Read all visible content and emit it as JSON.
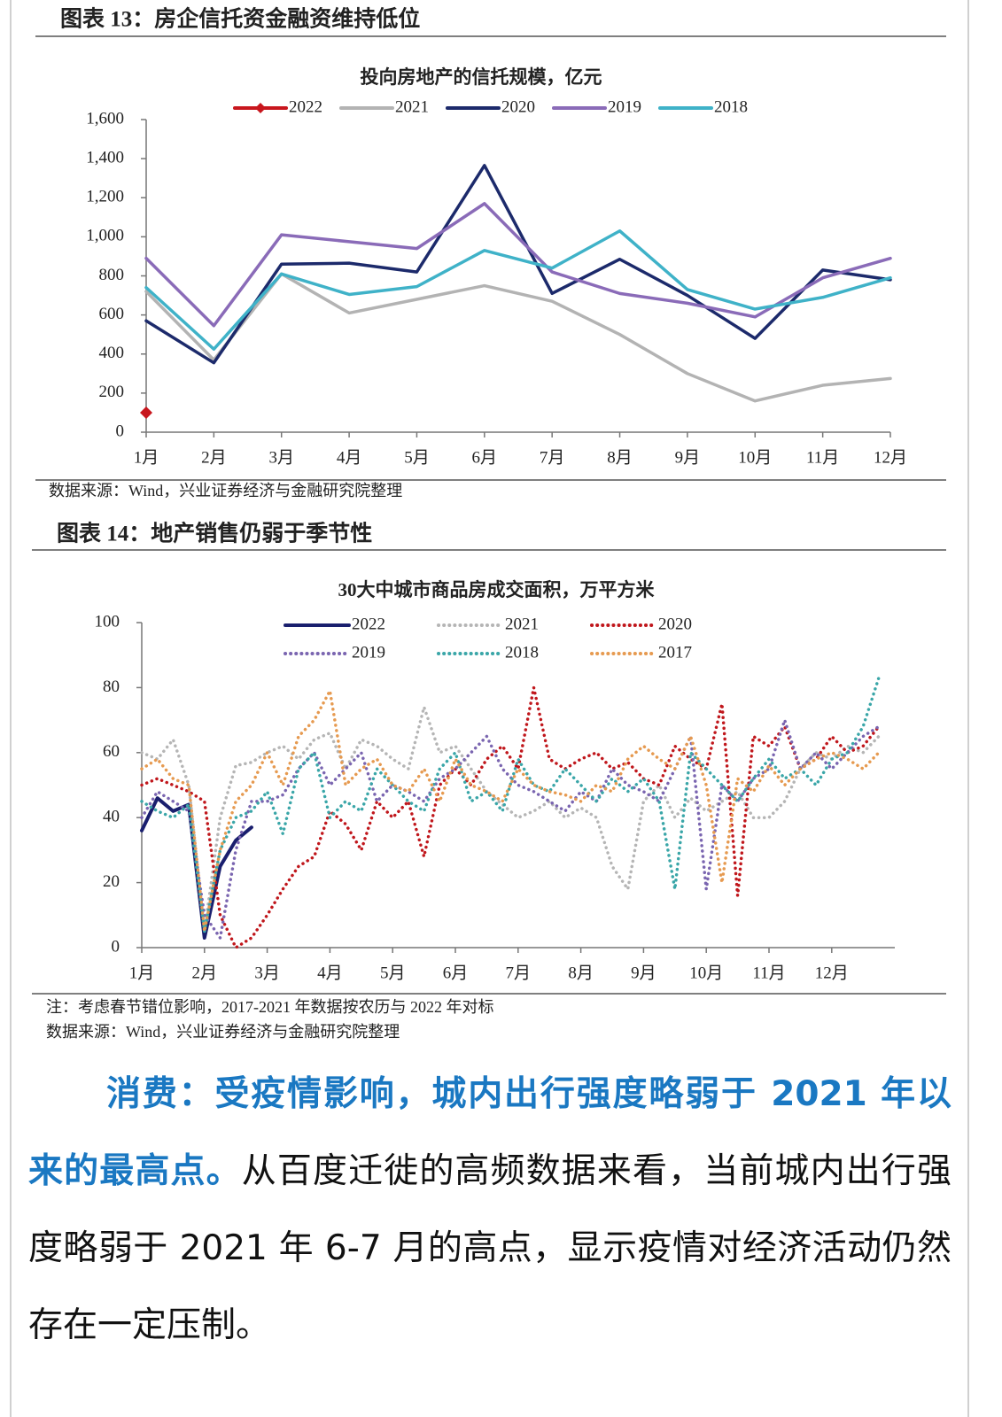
{
  "chart_data": [
    {
      "type": "line",
      "caption": "图表 13：房企信托资金融资维持低位",
      "title": "投向房地产的信托规模，亿元",
      "source": "数据来源：Wind，兴业证券经济与金融研究院整理",
      "categories": [
        "1月",
        "2月",
        "3月",
        "4月",
        "5月",
        "6月",
        "7月",
        "8月",
        "9月",
        "10月",
        "11月",
        "12月"
      ],
      "ylim": [
        0,
        1600
      ],
      "yticks": [
        0,
        200,
        400,
        600,
        800,
        {
          "value": 1000,
          "label": "1,000"
        },
        {
          "value": 1200,
          "label": "1,200"
        },
        {
          "value": 1400,
          "label": "1,400"
        },
        {
          "value": 1600,
          "label": "1,600"
        }
      ],
      "series": [
        {
          "name": "2022",
          "color": "#c8161d",
          "marker": "diamond",
          "values": [
            100,
            null,
            null,
            null,
            null,
            null,
            null,
            null,
            null,
            null,
            null,
            null
          ]
        },
        {
          "name": "2021",
          "color": "#b3b3b3",
          "values": [
            720,
            370,
            810,
            610,
            680,
            750,
            670,
            500,
            300,
            160,
            240,
            275
          ]
        },
        {
          "name": "2020",
          "color": "#1c2a6b",
          "values": [
            570,
            355,
            860,
            865,
            820,
            1365,
            710,
            885,
            700,
            480,
            830,
            780
          ]
        },
        {
          "name": "2019",
          "color": "#8a6bb8",
          "values": [
            890,
            545,
            1010,
            975,
            940,
            1170,
            820,
            710,
            660,
            590,
            790,
            890
          ]
        },
        {
          "name": "2018",
          "color": "#3fb2c8",
          "values": [
            740,
            425,
            810,
            705,
            745,
            930,
            840,
            1030,
            730,
            630,
            690,
            790
          ]
        }
      ]
    },
    {
      "type": "line",
      "caption": "图表 14：地产销售仍弱于季节性",
      "title": "30大中城市商品房成交面积，万平方米",
      "note": "注：考虑春节错位影响，2017-2021 年数据按农历与 2022 年对标",
      "source": "数据来源：Wind，兴业证券经济与金融研究院整理",
      "categories": [
        "1月",
        null,
        null,
        null,
        "2月",
        null,
        null,
        null,
        "3月",
        null,
        null,
        null,
        "4月",
        null,
        null,
        null,
        "5月",
        null,
        null,
        null,
        "6月",
        null,
        null,
        null,
        "7月",
        null,
        null,
        null,
        "8月",
        null,
        null,
        null,
        "9月",
        null,
        null,
        null,
        "10月",
        null,
        null,
        null,
        "11月",
        null,
        null,
        null,
        "12月",
        null,
        null,
        null
      ],
      "ylim": [
        0,
        100
      ],
      "yticks": [
        0,
        20,
        40,
        60,
        80,
        100
      ],
      "series": [
        {
          "name": "2022",
          "color": "#1a1f6e",
          "style": "solid",
          "values": [
            36,
            46,
            42,
            44,
            3,
            25,
            33,
            37,
            null,
            null,
            null,
            null,
            null,
            null,
            null,
            null,
            null,
            null,
            null,
            null,
            null,
            null,
            null,
            null,
            null,
            null,
            null,
            null,
            null,
            null,
            null,
            null,
            null,
            null,
            null,
            null,
            null,
            null,
            null,
            null,
            null,
            null,
            null,
            null,
            null,
            null,
            null,
            null
          ]
        },
        {
          "name": "2021",
          "color": "#b5b5b5",
          "style": "dotted",
          "values": [
            60,
            58,
            64,
            50,
            5,
            40,
            56,
            57,
            60,
            62,
            58,
            64,
            66,
            55,
            64,
            62,
            58,
            55,
            74,
            60,
            62,
            55,
            48,
            44,
            40,
            42,
            45,
            40,
            43,
            40,
            25,
            18,
            45,
            50,
            40,
            46,
            42,
            45,
            48,
            40,
            40,
            45,
            55,
            60,
            58,
            62,
            60,
            65
          ]
        },
        {
          "name": "2020",
          "color": "#c0171c",
          "style": "dotted",
          "values": [
            50,
            52,
            50,
            48,
            45,
            10,
            0,
            3,
            10,
            18,
            25,
            28,
            42,
            38,
            30,
            45,
            40,
            45,
            28,
            50,
            55,
            50,
            58,
            62,
            55,
            80,
            58,
            55,
            58,
            60,
            55,
            57,
            52,
            50,
            62,
            58,
            55,
            75,
            16,
            65,
            62,
            68,
            55,
            58,
            65,
            60,
            62,
            68
          ]
        },
        {
          "name": "2019",
          "color": "#7a65b0",
          "style": "dotted",
          "values": [
            40,
            48,
            45,
            42,
            10,
            3,
            30,
            45,
            45,
            47,
            55,
            60,
            50,
            55,
            60,
            45,
            50,
            48,
            45,
            52,
            55,
            60,
            65,
            55,
            50,
            48,
            45,
            42,
            48,
            45,
            55,
            50,
            48,
            45,
            55,
            65,
            18,
            50,
            45,
            52,
            55,
            70,
            55,
            60,
            55,
            60,
            65,
            68
          ]
        },
        {
          "name": "2018",
          "color": "#3aa6a8",
          "style": "dotted",
          "values": [
            45,
            42,
            40,
            44,
            5,
            30,
            40,
            42,
            48,
            35,
            55,
            60,
            40,
            45,
            42,
            55,
            50,
            45,
            42,
            55,
            60,
            45,
            48,
            42,
            58,
            50,
            48,
            55,
            50,
            45,
            52,
            48,
            52,
            45,
            18,
            60,
            55,
            50,
            45,
            52,
            58,
            52,
            55,
            50,
            58,
            60,
            68,
            83
          ]
        },
        {
          "name": "2017",
          "color": "#e69a50",
          "style": "dotted",
          "values": [
            55,
            58,
            52,
            50,
            5,
            30,
            45,
            50,
            60,
            50,
            65,
            70,
            79,
            50,
            55,
            58,
            50,
            48,
            55,
            45,
            58,
            50,
            48,
            45,
            55,
            50,
            48,
            47,
            45,
            50,
            48,
            58,
            62,
            58,
            55,
            65,
            50,
            20,
            52,
            48,
            56,
            50,
            55,
            58,
            60,
            58,
            55,
            60
          ]
        }
      ]
    }
  ],
  "paragraph": {
    "lead": "消费：受疫情影响，城内出行强度略弱于 2021 年以来的最高点。",
    "body": "从百度迁徙的高频数据来看，当前城内出行强度略弱于 2021 年 6-7 月的高点，显示疫情对经济活动仍然存在一定压制。"
  }
}
